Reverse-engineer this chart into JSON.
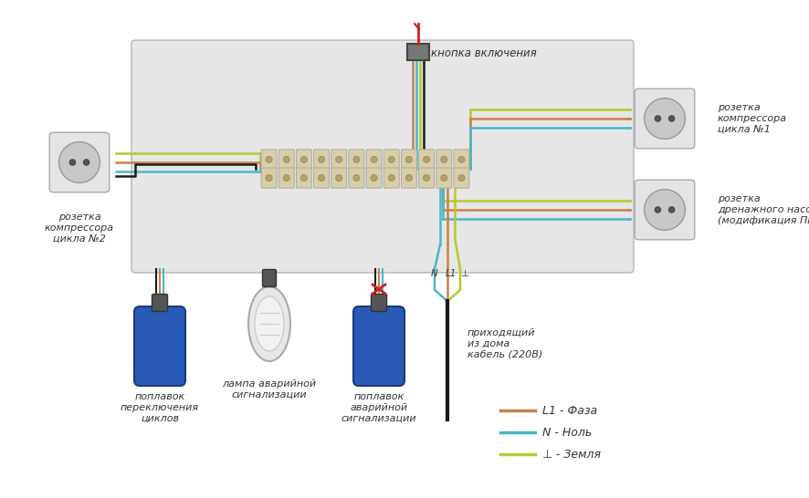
{
  "wire_colors": {
    "phase": "#c8834a",
    "neutral": "#4ab8c8",
    "ground": "#b8c832",
    "black": "#1a1a1a",
    "red": "#cc2222"
  },
  "legend_items": [
    {
      "label": "L1 - Фаза",
      "color": "#c8834a"
    },
    {
      "label": "N - Ноль",
      "color": "#4ab8c8"
    },
    {
      "label": "⊥ - Земля",
      "color": "#b8c832"
    }
  ],
  "labels": {
    "socket_left": "розетка\nкомпрессора\nцикла №2",
    "socket_right_top": "розетка\nкомпрессора\nцикла №1",
    "socket_right_bot": "розетка\nдренажного насоса\n(модификация ПР)",
    "button": "кнопка включения",
    "float1": "поплавок\nпереключения\nциклов",
    "lamp": "лампа аварийной\nсигнализации",
    "float2": "поплавок\nаварийной\nсигнализации",
    "cable": "приходящий\nиз дома\nкабель (220В)"
  }
}
